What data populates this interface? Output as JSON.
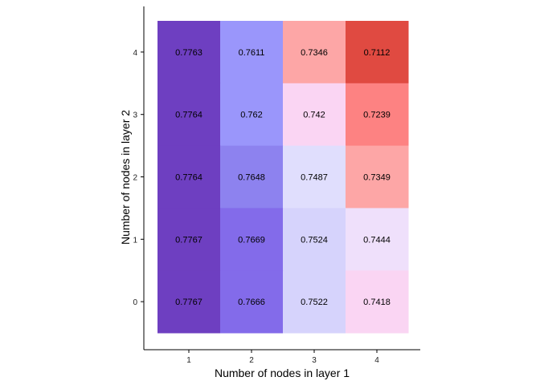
{
  "chart_data": {
    "type": "heatmap",
    "title": "",
    "xlabel": "Number of nodes in layer 1",
    "ylabel": "Number of nodes in layer 2",
    "x_categories": [
      "1",
      "2",
      "3",
      "4"
    ],
    "y_categories": [
      "0",
      "1",
      "2",
      "3",
      "4"
    ],
    "cells": [
      {
        "x": "1",
        "y": "4",
        "value": 0.7763,
        "label": "0.7763",
        "color": "#6e3fc1"
      },
      {
        "x": "2",
        "y": "4",
        "value": 0.7611,
        "label": "0.7611",
        "color": "#9a96fb"
      },
      {
        "x": "3",
        "y": "4",
        "value": 0.7346,
        "label": "0.7346",
        "color": "#fda6a6"
      },
      {
        "x": "4",
        "y": "4",
        "value": 0.7112,
        "label": "0.7112",
        "color": "#e04a41"
      },
      {
        "x": "1",
        "y": "3",
        "value": 0.7764,
        "label": "0.7764",
        "color": "#6e3fc1"
      },
      {
        "x": "2",
        "y": "3",
        "value": 0.762,
        "label": "0.762",
        "color": "#9a96fb"
      },
      {
        "x": "3",
        "y": "3",
        "value": 0.742,
        "label": "0.742",
        "color": "#fad5f3"
      },
      {
        "x": "4",
        "y": "3",
        "value": 0.7239,
        "label": "0.7239",
        "color": "#fd8282"
      },
      {
        "x": "1",
        "y": "2",
        "value": 0.7764,
        "label": "0.7764",
        "color": "#6e3fc1"
      },
      {
        "x": "2",
        "y": "2",
        "value": 0.7648,
        "label": "0.7648",
        "color": "#8d82ef"
      },
      {
        "x": "3",
        "y": "2",
        "value": 0.7487,
        "label": "0.7487",
        "color": "#e0defd"
      },
      {
        "x": "4",
        "y": "2",
        "value": 0.7349,
        "label": "0.7349",
        "color": "#fda6a6"
      },
      {
        "x": "1",
        "y": "1",
        "value": 0.7767,
        "label": "0.7767",
        "color": "#6e3fc1"
      },
      {
        "x": "2",
        "y": "1",
        "value": 0.7669,
        "label": "0.7669",
        "color": "#836bea"
      },
      {
        "x": "3",
        "y": "1",
        "value": 0.7524,
        "label": "0.7524",
        "color": "#d6d3fc"
      },
      {
        "x": "4",
        "y": "1",
        "value": 0.7444,
        "label": "0.7444",
        "color": "#efe0fb"
      },
      {
        "x": "1",
        "y": "0",
        "value": 0.7767,
        "label": "0.7767",
        "color": "#6e3fc1"
      },
      {
        "x": "2",
        "y": "0",
        "value": 0.7666,
        "label": "0.7666",
        "color": "#836bea"
      },
      {
        "x": "3",
        "y": "0",
        "value": 0.7522,
        "label": "0.7522",
        "color": "#d6d3fc"
      },
      {
        "x": "4",
        "y": "0",
        "value": 0.7418,
        "label": "0.7418",
        "color": "#fad5f3"
      }
    ],
    "legend": "none",
    "grid": false
  }
}
